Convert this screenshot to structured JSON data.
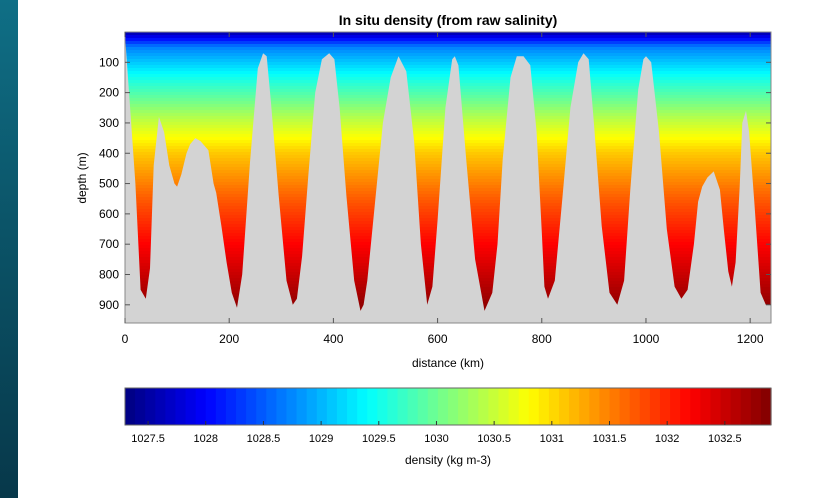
{
  "chart_data": [
    {
      "type": "heatmap",
      "title": "In situ density (from raw salinity)",
      "xlabel": "distance (km)",
      "ylabel": "depth (m)",
      "xlim": [
        0,
        1240
      ],
      "ylim": [
        960,
        0
      ],
      "y_reversed": true,
      "x_ticks": [
        0,
        200,
        400,
        600,
        800,
        1000,
        1200
      ],
      "y_ticks": [
        100,
        200,
        300,
        400,
        500,
        600,
        700,
        800,
        900
      ],
      "background_color": "#d3d3d3",
      "grid": false,
      "density_profile": {
        "depth": [
          0,
          50,
          150,
          300,
          400,
          550,
          700,
          900
        ],
        "density": [
          1027.5,
          1028.7,
          1029.5,
          1030.5,
          1031.1,
          1031.7,
          1032.2,
          1032.8
        ]
      },
      "data_depth_max_profile": {
        "x": [
          0,
          20,
          30,
          40,
          48,
          55,
          65,
          75,
          85,
          95,
          100,
          108,
          118,
          125,
          135,
          145,
          160,
          170,
          175,
          185,
          195,
          205,
          215,
          225,
          240,
          255,
          265,
          272,
          280,
          295,
          310,
          322,
          330,
          340,
          352,
          365,
          378,
          392,
          402,
          412,
          425,
          440,
          452,
          458,
          465,
          480,
          495,
          510,
          525,
          540,
          555,
          568,
          580,
          590,
          600,
          615,
          628,
          633,
          640,
          655,
          672,
          690,
          705,
          715,
          725,
          740,
          752,
          765,
          778,
          790,
          800,
          805,
          812,
          825,
          840,
          855,
          870,
          880,
          890,
          900,
          915,
          930,
          945,
          958,
          970,
          985,
          995,
          1000,
          1010,
          1025,
          1040,
          1055,
          1068,
          1080,
          1092,
          1100,
          1108,
          1118,
          1130,
          1142,
          1150,
          1158,
          1165,
          1172,
          1180,
          1185,
          1192,
          1198,
          1208,
          1220,
          1230,
          1240
        ],
        "depth": [
          10,
          500,
          850,
          880,
          780,
          440,
          280,
          330,
          440,
          500,
          510,
          470,
          400,
          370,
          350,
          360,
          390,
          500,
          530,
          640,
          760,
          860,
          910,
          800,
          430,
          120,
          70,
          80,
          230,
          540,
          820,
          900,
          880,
          740,
          470,
          200,
          90,
          70,
          90,
          250,
          540,
          820,
          920,
          900,
          820,
          560,
          300,
          150,
          80,
          130,
          360,
          700,
          900,
          840,
          620,
          250,
          90,
          80,
          110,
          420,
          750,
          920,
          860,
          700,
          420,
          150,
          80,
          80,
          110,
          330,
          660,
          840,
          880,
          820,
          540,
          250,
          100,
          70,
          90,
          300,
          640,
          860,
          900,
          820,
          520,
          190,
          90,
          80,
          100,
          330,
          650,
          840,
          880,
          850,
          700,
          560,
          510,
          480,
          460,
          520,
          660,
          790,
          840,
          760,
          510,
          300,
          260,
          330,
          560,
          860,
          900,
          900
        ],
        "note": null
      }
    },
    {
      "type": "heatmap",
      "xlabel": "density (kg m-3)",
      "xlim": [
        1027.3,
        1032.9
      ],
      "x_ticks": [
        1027.5,
        1028,
        1028.5,
        1029,
        1029.5,
        1030,
        1030.5,
        1031,
        1031.5,
        1032,
        1032.5
      ],
      "x_tick_labels": [
        "1027.5",
        "1028",
        "1028.5",
        "1029",
        "1029.5",
        "1030",
        "1030.5",
        "1031",
        "1031.5",
        "1032",
        "1032.5"
      ],
      "colormap": "jet"
    }
  ]
}
